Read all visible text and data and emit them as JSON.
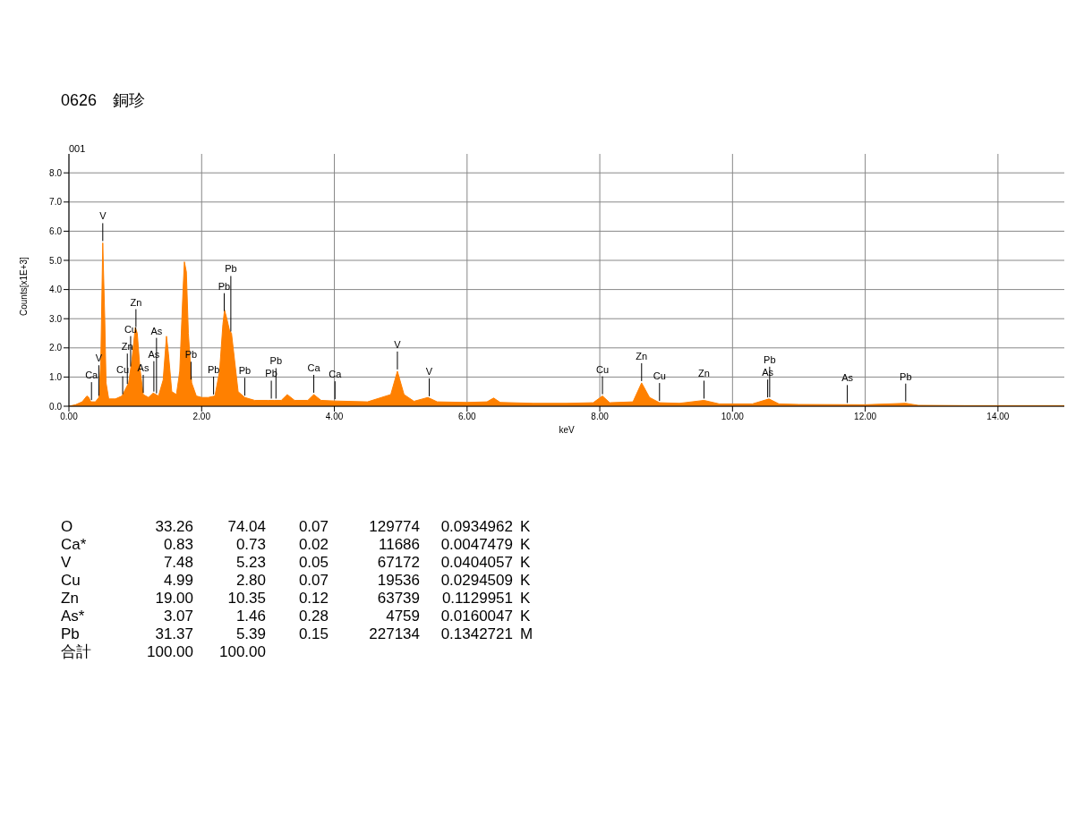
{
  "chart_data": {
    "type": "area",
    "title": "0626　銅珍",
    "subtitle": "001",
    "xlabel": "keV",
    "ylabel": "Counts[x1E+3]",
    "x": [
      0,
      0.1,
      0.2,
      0.27,
      0.3,
      0.33,
      0.4,
      0.45,
      0.48,
      0.51,
      0.54,
      0.56,
      0.6,
      0.7,
      0.8,
      0.9,
      0.95,
      1.0,
      1.03,
      1.07,
      1.12,
      1.2,
      1.27,
      1.35,
      1.42,
      1.47,
      1.5,
      1.55,
      1.62,
      1.67,
      1.72,
      1.74,
      1.77,
      1.8,
      1.85,
      1.92,
      2.0,
      2.1,
      2.2,
      2.27,
      2.32,
      2.345,
      2.38,
      2.42,
      2.45,
      2.5,
      2.55,
      2.65,
      2.8,
      3.0,
      3.1,
      3.2,
      3.29,
      3.4,
      3.6,
      3.69,
      3.8,
      4.0,
      4.5,
      4.85,
      4.95,
      5.05,
      5.2,
      5.41,
      5.55,
      6.0,
      6.3,
      6.4,
      6.5,
      7.0,
      7.5,
      7.9,
      8.04,
      8.15,
      8.5,
      8.63,
      8.75,
      8.9,
      9.2,
      9.57,
      9.8,
      10.3,
      10.55,
      10.7,
      11.0,
      12.0,
      12.61,
      12.8,
      13.5,
      15
    ],
    "series": [
      {
        "color": "#ff8000",
        "values": [
          0,
          0.05,
          0.15,
          0.35,
          0.3,
          0.15,
          0.15,
          0.3,
          1.5,
          5.6,
          3.0,
          0.8,
          0.25,
          0.25,
          0.35,
          0.8,
          1.6,
          2.7,
          2.5,
          1.3,
          0.4,
          0.3,
          0.45,
          0.35,
          0.9,
          2.4,
          1.8,
          0.5,
          0.4,
          1.2,
          4.0,
          4.95,
          4.6,
          2.5,
          0.8,
          0.35,
          0.3,
          0.3,
          0.35,
          1.2,
          2.8,
          3.3,
          3.0,
          2.6,
          2.5,
          1.5,
          0.5,
          0.3,
          0.2,
          0.2,
          0.2,
          0.2,
          0.4,
          0.2,
          0.2,
          0.4,
          0.2,
          0.18,
          0.15,
          0.4,
          1.2,
          0.4,
          0.17,
          0.3,
          0.15,
          0.13,
          0.15,
          0.28,
          0.13,
          0.1,
          0.1,
          0.12,
          0.35,
          0.12,
          0.15,
          0.8,
          0.3,
          0.12,
          0.1,
          0.2,
          0.08,
          0.08,
          0.25,
          0.08,
          0.06,
          0.05,
          0.1,
          0.03,
          0.02,
          0.02
        ]
      }
    ],
    "xlim": [
      0,
      15
    ],
    "xticks": [
      {
        "value": 0,
        "label": "0.00"
      },
      {
        "value": 2,
        "label": "2.00"
      },
      {
        "value": 4,
        "label": "4.00"
      },
      {
        "value": 6,
        "label": "6.00"
      },
      {
        "value": 8,
        "label": "8.00"
      },
      {
        "value": 10,
        "label": "10.00"
      },
      {
        "value": 12,
        "label": "12.00"
      },
      {
        "value": 14,
        "label": "14.00"
      }
    ],
    "ylim": [
      0,
      8.65
    ],
    "yticks": [
      {
        "value": 0,
        "label": "0.0"
      },
      {
        "value": 1,
        "label": "1.0"
      },
      {
        "value": 2,
        "label": "2.0"
      },
      {
        "value": 3,
        "label": "3.0"
      },
      {
        "value": 4,
        "label": "4.0"
      },
      {
        "value": 5,
        "label": "5.0"
      },
      {
        "value": 6,
        "label": "6.0"
      },
      {
        "value": 7,
        "label": "7.0"
      },
      {
        "value": 8,
        "label": "8.0"
      }
    ],
    "grid": true,
    "annotations": [
      {
        "text": "Ca",
        "x": 0.34,
        "y": 0.15
      },
      {
        "text": "V",
        "x": 0.45,
        "y": 0.3
      },
      {
        "text": "V",
        "x": 0.51,
        "y": 5.6
      },
      {
        "text": "Cu",
        "x": 0.81,
        "y": 0.35
      },
      {
        "text": "Zn",
        "x": 0.88,
        "y": 0.7
      },
      {
        "text": "Cu",
        "x": 0.93,
        "y": 1.3
      },
      {
        "text": "Zn",
        "x": 1.01,
        "y": 2.65
      },
      {
        "text": "As",
        "x": 1.12,
        "y": 0.4
      },
      {
        "text": "As",
        "x": 1.28,
        "y": 0.44
      },
      {
        "text": "As",
        "x": 1.32,
        "y": 0.38
      },
      {
        "text": "Pb",
        "x": 1.84,
        "y": 0.85
      },
      {
        "text": "Pb",
        "x": 2.18,
        "y": 0.34
      },
      {
        "text": "Pb",
        "x": 2.34,
        "y": 3.2
      },
      {
        "text": "Pb",
        "x": 2.44,
        "y": 2.5
      },
      {
        "text": "Pb",
        "x": 2.65,
        "y": 0.3
      },
      {
        "text": "Pb",
        "x": 3.05,
        "y": 0.2
      },
      {
        "text": "Pb",
        "x": 3.12,
        "y": 0.2
      },
      {
        "text": "Ca",
        "x": 3.69,
        "y": 0.4
      },
      {
        "text": "Ca",
        "x": 4.01,
        "y": 0.18
      },
      {
        "text": "V",
        "x": 4.95,
        "y": 1.2
      },
      {
        "text": "V",
        "x": 5.43,
        "y": 0.28
      },
      {
        "text": "Cu",
        "x": 8.04,
        "y": 0.35
      },
      {
        "text": "Zn",
        "x": 8.63,
        "y": 0.8
      },
      {
        "text": "Cu",
        "x": 8.9,
        "y": 0.12
      },
      {
        "text": "Zn",
        "x": 9.57,
        "y": 0.2
      },
      {
        "text": "As",
        "x": 10.53,
        "y": 0.24
      },
      {
        "text": "Pb",
        "x": 10.56,
        "y": 0.25
      },
      {
        "text": "As",
        "x": 11.73,
        "y": 0.05
      },
      {
        "text": "Pb",
        "x": 12.61,
        "y": 0.1
      },
      "O 33.26 74.04 0.07 129774 0.0934962 K",
      "Ca* 0.83 0.73 0.02 11686 0.0047479 K",
      "V 7.48 5.23 0.05 67172 0.0404057 K",
      "Cu 4.99 2.80 0.07 19536 0.0294509 K",
      "Zn 19.00 10.35 0.12 63739 0.1129951 K",
      "As* 3.07 1.46 0.28 4759 0.0160047 K",
      "Pb 31.37 5.39 0.15 227134 0.1342721 M",
      "合計 100.00 100.00"
    ]
  }
}
